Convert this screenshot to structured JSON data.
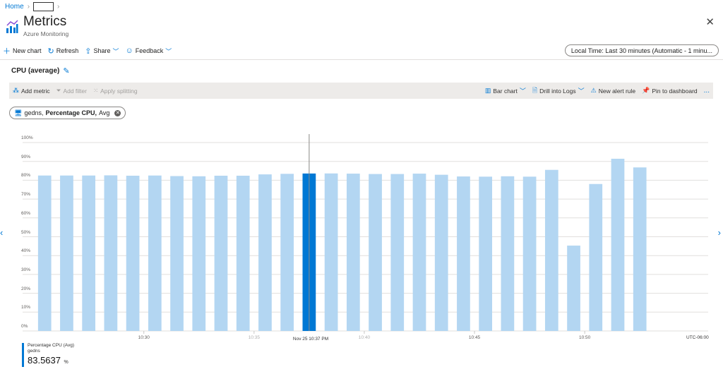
{
  "breadcrumb": {
    "home": "Home",
    "current": ""
  },
  "header": {
    "title": "Metrics",
    "subtitle": "Azure Monitoring",
    "close": "✕"
  },
  "commands": [
    {
      "label": "New chart",
      "icon": "plus-icon"
    },
    {
      "label": "Refresh",
      "icon": "refresh-icon"
    },
    {
      "label": "Share",
      "icon": "share-icon"
    },
    {
      "label": "Feedback",
      "icon": "smiley-icon"
    }
  ],
  "time_range": "Local Time: Last 30 minutes (Automatic - 1 minu...",
  "chart_title": "CPU (average)",
  "toolbar": {
    "add_metric": "Add metric",
    "add_filter": "Add filter",
    "apply_splitting": "Apply splitting",
    "bar_chart": "Bar chart",
    "drill_logs": "Drill into Logs",
    "new_alert": "New alert rule",
    "pin": "Pin to dashboard",
    "more": "..."
  },
  "metric_pill": {
    "resource": "gedns,",
    "metric": "Percentage CPU,",
    "agg": "Avg"
  },
  "legend": {
    "metric": "Percentage CPU (Avg)",
    "resource": "gedns",
    "value": "83.5637",
    "unit": "%"
  },
  "colors": {
    "bar": "#b3d6f2",
    "highlight": "#0078d4",
    "grid": "#e1dfdd"
  },
  "chart_data": {
    "type": "bar",
    "categories": [
      "10:25",
      "10:26",
      "10:27",
      "10:28",
      "10:29",
      "10:30",
      "10:31",
      "10:32",
      "10:33",
      "10:34",
      "10:35",
      "10:36",
      "10:37",
      "10:38",
      "10:39",
      "10:40",
      "10:41",
      "10:42",
      "10:43",
      "10:44",
      "10:45",
      "10:46",
      "10:47",
      "10:48",
      "10:49",
      "10:50",
      "10:51",
      "10:52"
    ],
    "values": [
      82.5,
      82.5,
      82.5,
      82.6,
      82.4,
      82.5,
      82.2,
      82.1,
      82.4,
      82.4,
      83.1,
      83.4,
      83.5637,
      83.6,
      83.5,
      83.3,
      83.3,
      83.5,
      82.9,
      82.0,
      81.9,
      82.1,
      81.9,
      85.5,
      45.3,
      78.0,
      91.4,
      86.8
    ],
    "highlighted": "10:37",
    "ylim": [
      0,
      100
    ],
    "yticks": [
      "0%",
      "10%",
      "20%",
      "30%",
      "40%",
      "50%",
      "60%",
      "70%",
      "80%",
      "90%",
      "100%"
    ],
    "xticks": [
      "10:30",
      "10:35",
      "10:40",
      "10:45",
      "10:50"
    ],
    "xlim": [
      "10:24:30",
      "10:55:36"
    ],
    "crosshair_label": "Nov 25 10:37 PM",
    "timezone": "UTC-06:00",
    "grid": true
  }
}
